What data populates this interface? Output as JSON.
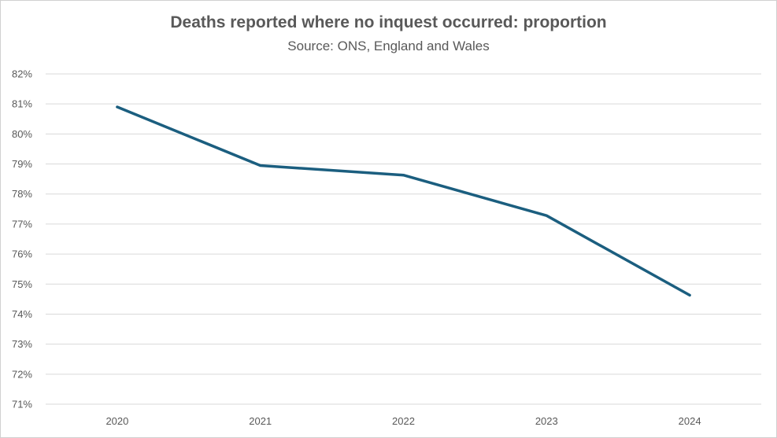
{
  "chart_data": {
    "type": "line",
    "title": "Deaths reported where no inquest occurred: proportion",
    "subtitle": "Source: ONS, England and Wales",
    "xlabel": "",
    "ylabel": "",
    "categories": [
      "2020",
      "2021",
      "2022",
      "2023",
      "2024"
    ],
    "series": [
      {
        "values": [
          80.9,
          78.95,
          78.63,
          77.28,
          74.63
        ],
        "color": "#1b5e7f"
      }
    ],
    "ylim": [
      71,
      82
    ],
    "y_ticks": [
      "71%",
      "72%",
      "73%",
      "74%",
      "75%",
      "76%",
      "77%",
      "78%",
      "79%",
      "80%",
      "81%",
      "82%"
    ],
    "grid": true,
    "legend": "none",
    "gridline_color": "#d9d9d9"
  }
}
